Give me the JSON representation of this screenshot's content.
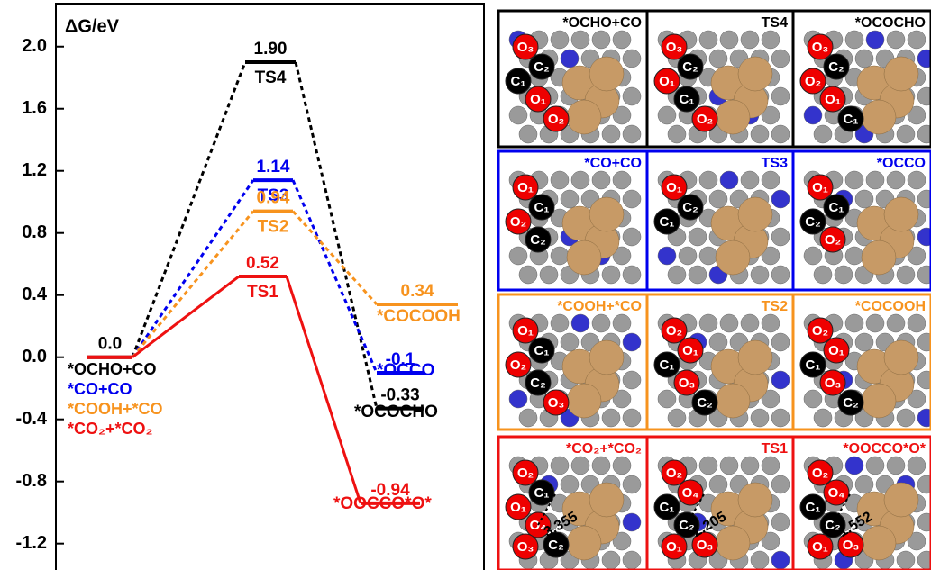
{
  "chart_data": {
    "type": "energy-profile",
    "y_label": "ΔG/eV",
    "ylim": [
      -1.37,
      2.3
    ],
    "yticks": [
      {
        "value": 2.0,
        "label": "2.0"
      },
      1.6,
      1.2,
      0.8,
      0.4,
      {
        "value": 0.0,
        "label": "0.0"
      },
      -0.4,
      -0.8,
      -1.2
    ],
    "series": [
      {
        "name": "*OCHO+CO",
        "color": "#000000",
        "line_style": "dashed",
        "states": [
          "*OCHO+CO",
          "TS4",
          "*OCOCHO"
        ],
        "values": [
          0,
          1.9,
          -0.33
        ],
        "value_labels": [
          "0.0",
          "1.90",
          "-0.33"
        ]
      },
      {
        "name": "*CO+CO",
        "color": "#0000ee",
        "line_style": "dashed",
        "states": [
          "*CO+CO",
          "TS3",
          "*OCCO"
        ],
        "values": [
          0,
          1.14,
          -0.1
        ],
        "value_labels": [
          null,
          "1.14",
          "-0.1"
        ]
      },
      {
        "name": "*COOH+*CO",
        "color": "#f7931e",
        "line_style": "dashed",
        "states": [
          "*COOH+*CO",
          "TS2",
          "*COCOOH"
        ],
        "values": [
          0,
          0.94,
          0.34
        ],
        "value_labels": [
          null,
          "0.94",
          "0.34"
        ]
      },
      {
        "name": "*CO₂+*CO₂",
        "color": "#ee1111",
        "line_style": "solid",
        "states": [
          "*CO₂+*CO₂",
          "TS1",
          "*OOCCO*O*"
        ],
        "values": [
          0,
          0.52,
          -0.94
        ],
        "value_labels": [
          null,
          "0.52",
          "-0.94"
        ]
      }
    ]
  },
  "panels": [
    {
      "color": "#000000",
      "cells": [
        {
          "title": "*OCHO+CO",
          "atoms": [
            "O₃",
            "C₂",
            "C₁",
            "O₁",
            "O₂"
          ]
        },
        {
          "title": "TS4",
          "atoms": [
            "O₃",
            "C₂",
            "O₁",
            "C₁",
            "O₂"
          ]
        },
        {
          "title": "*OCOCHO",
          "atoms": [
            "O₃",
            "C₂",
            "O₂",
            "O₁",
            "C₁"
          ]
        }
      ]
    },
    {
      "color": "#0000ee",
      "cells": [
        {
          "title": "*CO+CO",
          "atoms": [
            "O₁",
            "C₁",
            "O₂",
            "C₂"
          ]
        },
        {
          "title": "TS3",
          "atoms": [
            "O₁",
            "C₂",
            "C₁"
          ]
        },
        {
          "title": "*OCCO",
          "atoms": [
            "O₁",
            "C₁",
            "C₂",
            "O₂"
          ]
        }
      ]
    },
    {
      "color": "#f7931e",
      "cells": [
        {
          "title": "*COOH+*CO",
          "atoms": [
            "O₁",
            "C₁",
            "O₂",
            "C₂",
            "O₃"
          ]
        },
        {
          "title": "TS2",
          "atoms": [
            "O₂",
            "O₁",
            "C₁",
            "O₃",
            "C₂"
          ]
        },
        {
          "title": "*COCOOH",
          "atoms": [
            "O₂",
            "O₁",
            "C₁",
            "O₃",
            "C₂"
          ]
        }
      ]
    },
    {
      "color": "#ee1111",
      "cells": [
        {
          "title": "*CO₂+*CO₂",
          "atoms": [
            "O₂",
            "C₁",
            "O₁",
            "O₄",
            "C₂",
            "O₃"
          ],
          "distance": "3.355"
        },
        {
          "title": "TS1",
          "atoms": [
            "O₂",
            "O₄",
            "C₁",
            "C₂",
            "O₃",
            "O₁"
          ],
          "distance": "2.205"
        },
        {
          "title": "*OOCCO*O*",
          "atoms": [
            "O₂",
            "O₄",
            "C₁",
            "C₂",
            "O₃",
            "O₁"
          ],
          "distance": "1.552"
        }
      ]
    }
  ]
}
